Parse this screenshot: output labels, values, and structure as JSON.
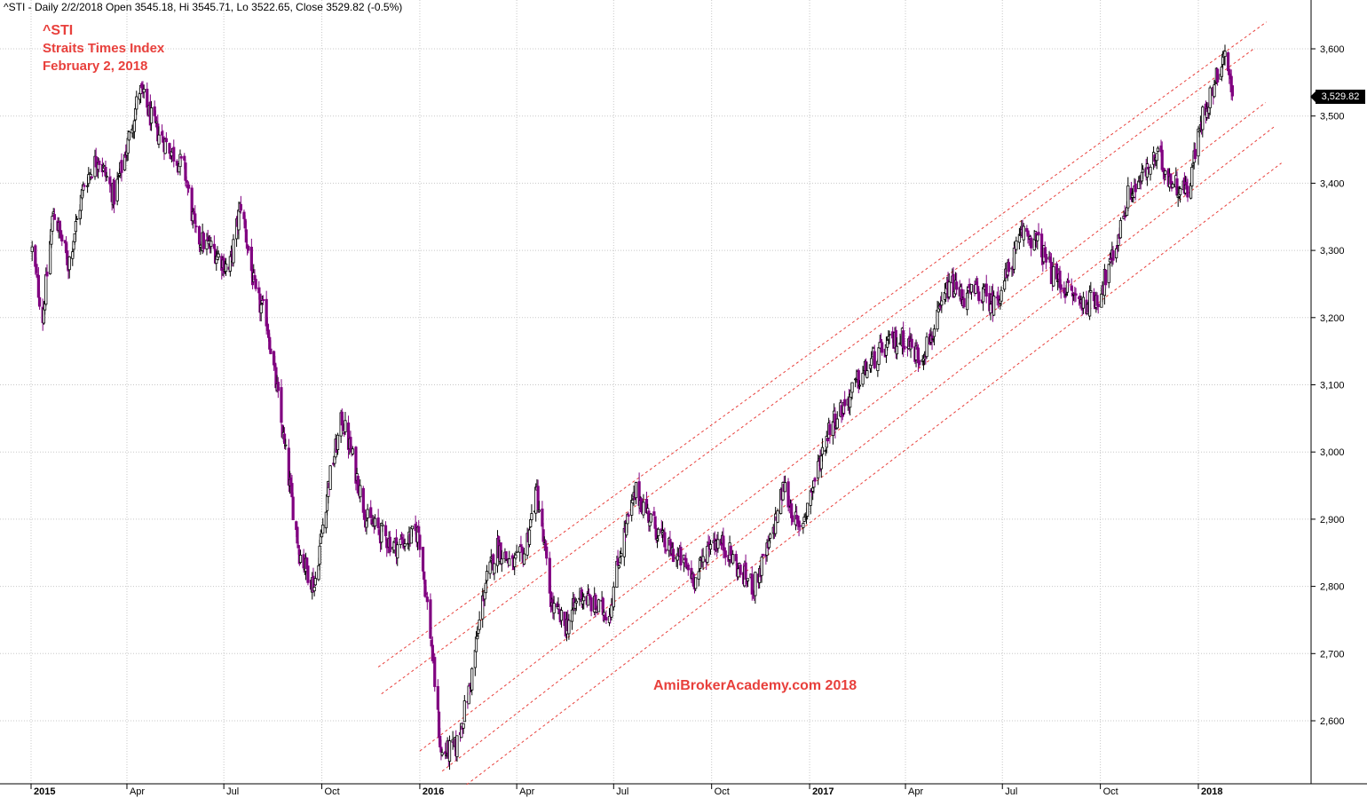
{
  "header": {
    "text": "^STI - Daily 2/2/2018 Open 3545.18, Hi 3545.71, Lo 3522.65, Close 3529.82 (-0.5%)"
  },
  "annotations": {
    "symbol": "^STI",
    "name": "Straits Times Index",
    "date": "February 2, 2018",
    "watermark": "AmiBrokerAcademy.com 2018"
  },
  "last_value_label": "3,529.82",
  "colors": {
    "up_candle": "#000000",
    "down_candle": "#800080",
    "channel_lines": "#e8403c",
    "annotation_text": "#e8403c",
    "grid": "#c8c8c8"
  },
  "chart_data": {
    "type": "candlestick",
    "title": "",
    "x_tick_labels": [
      "2015",
      "Apr",
      "Jul",
      "Oct",
      "2016",
      "Apr",
      "Jul",
      "Oct",
      "2017",
      "Apr",
      "Jul",
      "Oct",
      "2018"
    ],
    "y_tick_labels": [
      "2,600",
      "2,700",
      "2,800",
      "2,900",
      "3,000",
      "3,100",
      "3,200",
      "3,300",
      "3,400",
      "3,500",
      "3,600"
    ],
    "ylim": [
      2500,
      3650
    ],
    "grid": true,
    "last_close": 3529.82,
    "last_bar": {
      "date": "2018-02-02",
      "open": 3545.18,
      "high": 3545.71,
      "low": 3522.65,
      "close": 3529.82
    },
    "price_path": [
      [
        "2015-01-02",
        3300
      ],
      [
        "2015-01-12",
        3200
      ],
      [
        "2015-01-22",
        3360
      ],
      [
        "2015-02-05",
        3280
      ],
      [
        "2015-02-20",
        3400
      ],
      [
        "2015-03-05",
        3440
      ],
      [
        "2015-03-20",
        3380
      ],
      [
        "2015-04-02",
        3460
      ],
      [
        "2015-04-13",
        3540
      ],
      [
        "2015-04-28",
        3480
      ],
      [
        "2015-05-12",
        3450
      ],
      [
        "2015-05-25",
        3420
      ],
      [
        "2015-06-05",
        3320
      ],
      [
        "2015-06-22",
        3300
      ],
      [
        "2015-07-06",
        3270
      ],
      [
        "2015-07-17",
        3370
      ],
      [
        "2015-07-31",
        3230
      ],
      [
        "2015-08-10",
        3200
      ],
      [
        "2015-08-20",
        3090
      ],
      [
        "2015-08-31",
        2960
      ],
      [
        "2015-09-10",
        2850
      ],
      [
        "2015-09-24",
        2800
      ],
      [
        "2015-10-07",
        2950
      ],
      [
        "2015-10-20",
        3050
      ],
      [
        "2015-10-30",
        2990
      ],
      [
        "2015-11-12",
        2900
      ],
      [
        "2015-11-25",
        2880
      ],
      [
        "2015-12-08",
        2860
      ],
      [
        "2015-12-21",
        2870
      ],
      [
        "2015-12-31",
        2882
      ],
      [
        "2016-01-11",
        2730
      ],
      [
        "2016-01-21",
        2550
      ],
      [
        "2016-02-04",
        2560
      ],
      [
        "2016-02-17",
        2650
      ],
      [
        "2016-03-02",
        2800
      ],
      [
        "2016-03-14",
        2860
      ],
      [
        "2016-03-28",
        2830
      ],
      [
        "2016-04-08",
        2850
      ],
      [
        "2016-04-20",
        2940
      ],
      [
        "2016-05-04",
        2770
      ],
      [
        "2016-05-17",
        2740
      ],
      [
        "2016-05-31",
        2790
      ],
      [
        "2016-06-13",
        2770
      ],
      [
        "2016-06-27",
        2760
      ],
      [
        "2016-07-08",
        2860
      ],
      [
        "2016-07-22",
        2940
      ],
      [
        "2016-08-05",
        2900
      ],
      [
        "2016-08-19",
        2860
      ],
      [
        "2016-09-02",
        2840
      ],
      [
        "2016-09-16",
        2810
      ],
      [
        "2016-09-30",
        2870
      ],
      [
        "2016-10-14",
        2860
      ],
      [
        "2016-10-28",
        2820
      ],
      [
        "2016-11-10",
        2800
      ],
      [
        "2016-11-24",
        2860
      ],
      [
        "2016-12-08",
        2950
      ],
      [
        "2016-12-22",
        2880
      ],
      [
        "2017-01-06",
        2960
      ],
      [
        "2017-01-20",
        3040
      ],
      [
        "2017-02-03",
        3070
      ],
      [
        "2017-02-17",
        3110
      ],
      [
        "2017-03-03",
        3140
      ],
      [
        "2017-03-17",
        3160
      ],
      [
        "2017-03-31",
        3170
      ],
      [
        "2017-04-14",
        3140
      ],
      [
        "2017-04-28",
        3180
      ],
      [
        "2017-05-12",
        3250
      ],
      [
        "2017-05-26",
        3230
      ],
      [
        "2017-06-09",
        3240
      ],
      [
        "2017-06-23",
        3220
      ],
      [
        "2017-07-07",
        3270
      ],
      [
        "2017-07-21",
        3330
      ],
      [
        "2017-08-04",
        3310
      ],
      [
        "2017-08-18",
        3260
      ],
      [
        "2017-09-01",
        3240
      ],
      [
        "2017-09-15",
        3220
      ],
      [
        "2017-09-29",
        3230
      ],
      [
        "2017-10-13",
        3290
      ],
      [
        "2017-10-27",
        3380
      ],
      [
        "2017-11-10",
        3410
      ],
      [
        "2017-11-24",
        3440
      ],
      [
        "2017-12-08",
        3400
      ],
      [
        "2017-12-22",
        3390
      ],
      [
        "2018-01-05",
        3500
      ],
      [
        "2018-01-19",
        3560
      ],
      [
        "2018-01-26",
        3600
      ],
      [
        "2018-02-02",
        3530
      ]
    ],
    "channel_lines": [
      {
        "name": "",
        "points": [
          [
            "2015-11-23",
            2680
          ],
          [
            "2018-03-06",
            3640
          ]
        ]
      },
      {
        "name": "",
        "points": [
          [
            "2015-11-26",
            2640
          ],
          [
            "2018-02-22",
            3600
          ]
        ]
      },
      {
        "name": "",
        "points": [
          [
            "2016-01-01",
            2555
          ],
          [
            "2018-03-05",
            3520
          ]
        ]
      },
      {
        "name": "",
        "points": [
          [
            "2016-01-22",
            2525
          ],
          [
            "2018-03-14",
            3485
          ]
        ]
      },
      {
        "name": "",
        "points": [
          [
            "2016-02-14",
            2505
          ],
          [
            "2018-03-20",
            3430
          ]
        ]
      }
    ]
  }
}
